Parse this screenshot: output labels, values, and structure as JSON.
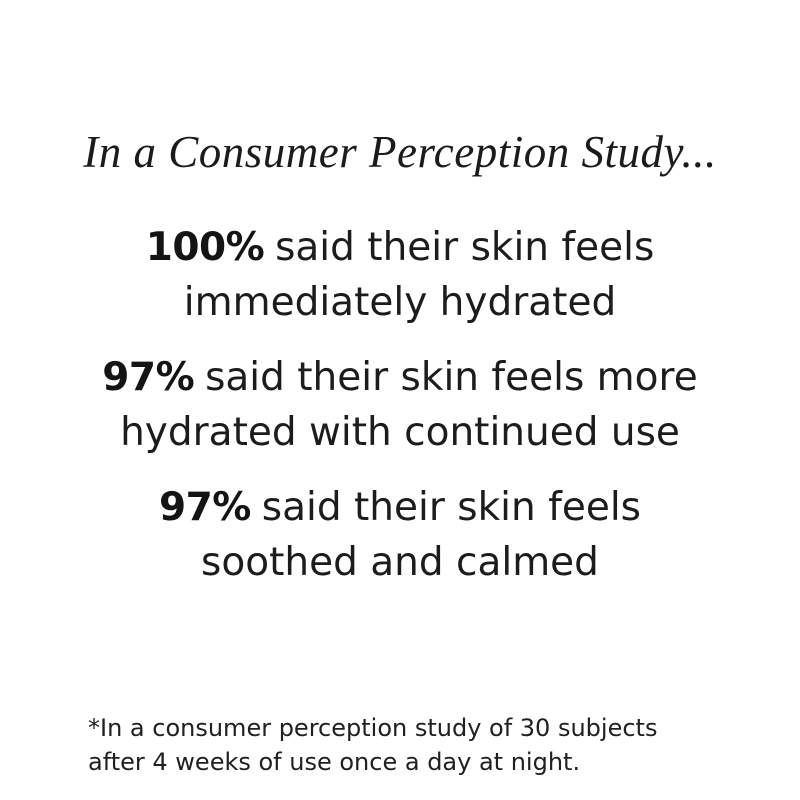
{
  "page": {
    "background_color": "#ffffff",
    "text_color": "#1a1a1a"
  },
  "title": "In a Consumer Perception Study...",
  "stats": [
    {
      "value": "100%",
      "line1": "said their skin feels",
      "line2": "immediately hydrated"
    },
    {
      "value": "97%",
      "line1": "said their skin feels more",
      "line2": "hydrated with continued use"
    },
    {
      "value": "97%",
      "line1": "said their skin feels",
      "line2": "soothed and calmed"
    }
  ],
  "footnote": {
    "line1": "*In a consumer perception study of 30 subjects",
    "line2": "after 4 weeks of use once a day at night."
  }
}
